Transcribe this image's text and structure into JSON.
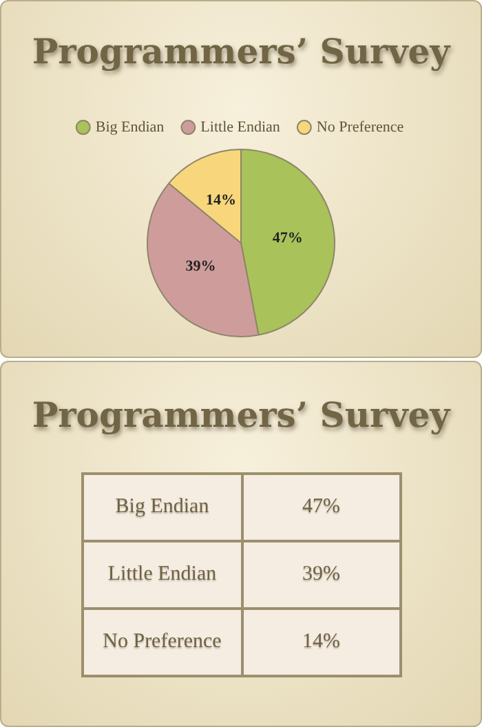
{
  "chart_data": {
    "type": "pie",
    "title": "Programmers’ Survey",
    "categories": [
      "Big Endian",
      "Little Endian",
      "No Preference"
    ],
    "values": [
      47,
      39,
      14
    ],
    "colors": [
      "#a9c25a",
      "#cf9c9c",
      "#f8d77c"
    ],
    "value_labels": [
      "47%",
      "39%",
      "14%"
    ],
    "legend": "top"
  }
}
